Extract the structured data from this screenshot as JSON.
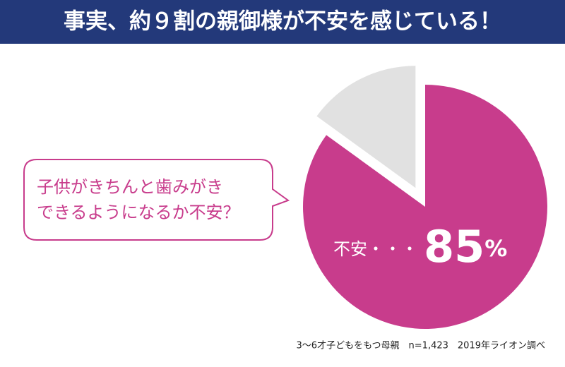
{
  "chart_data": {
    "type": "pie",
    "title": "事実、約９割の親御様が不安を感じている！",
    "categories": [
      null,
      null
    ],
    "values": [
      85,
      15
    ],
    "value_labels": [
      "85%",
      null
    ],
    "colors": [
      "#c83c8c",
      "#e1e1e1"
    ],
    "exploded": [
      false,
      true
    ],
    "annotation": "不安・・・",
    "callout": [
      "子供がきちんと歯みがき",
      "できるようになるか不安？"
    ],
    "footnote": "3〜6才子どもをもつ母親　n=1,423　2019年ライオン調べ"
  }
}
